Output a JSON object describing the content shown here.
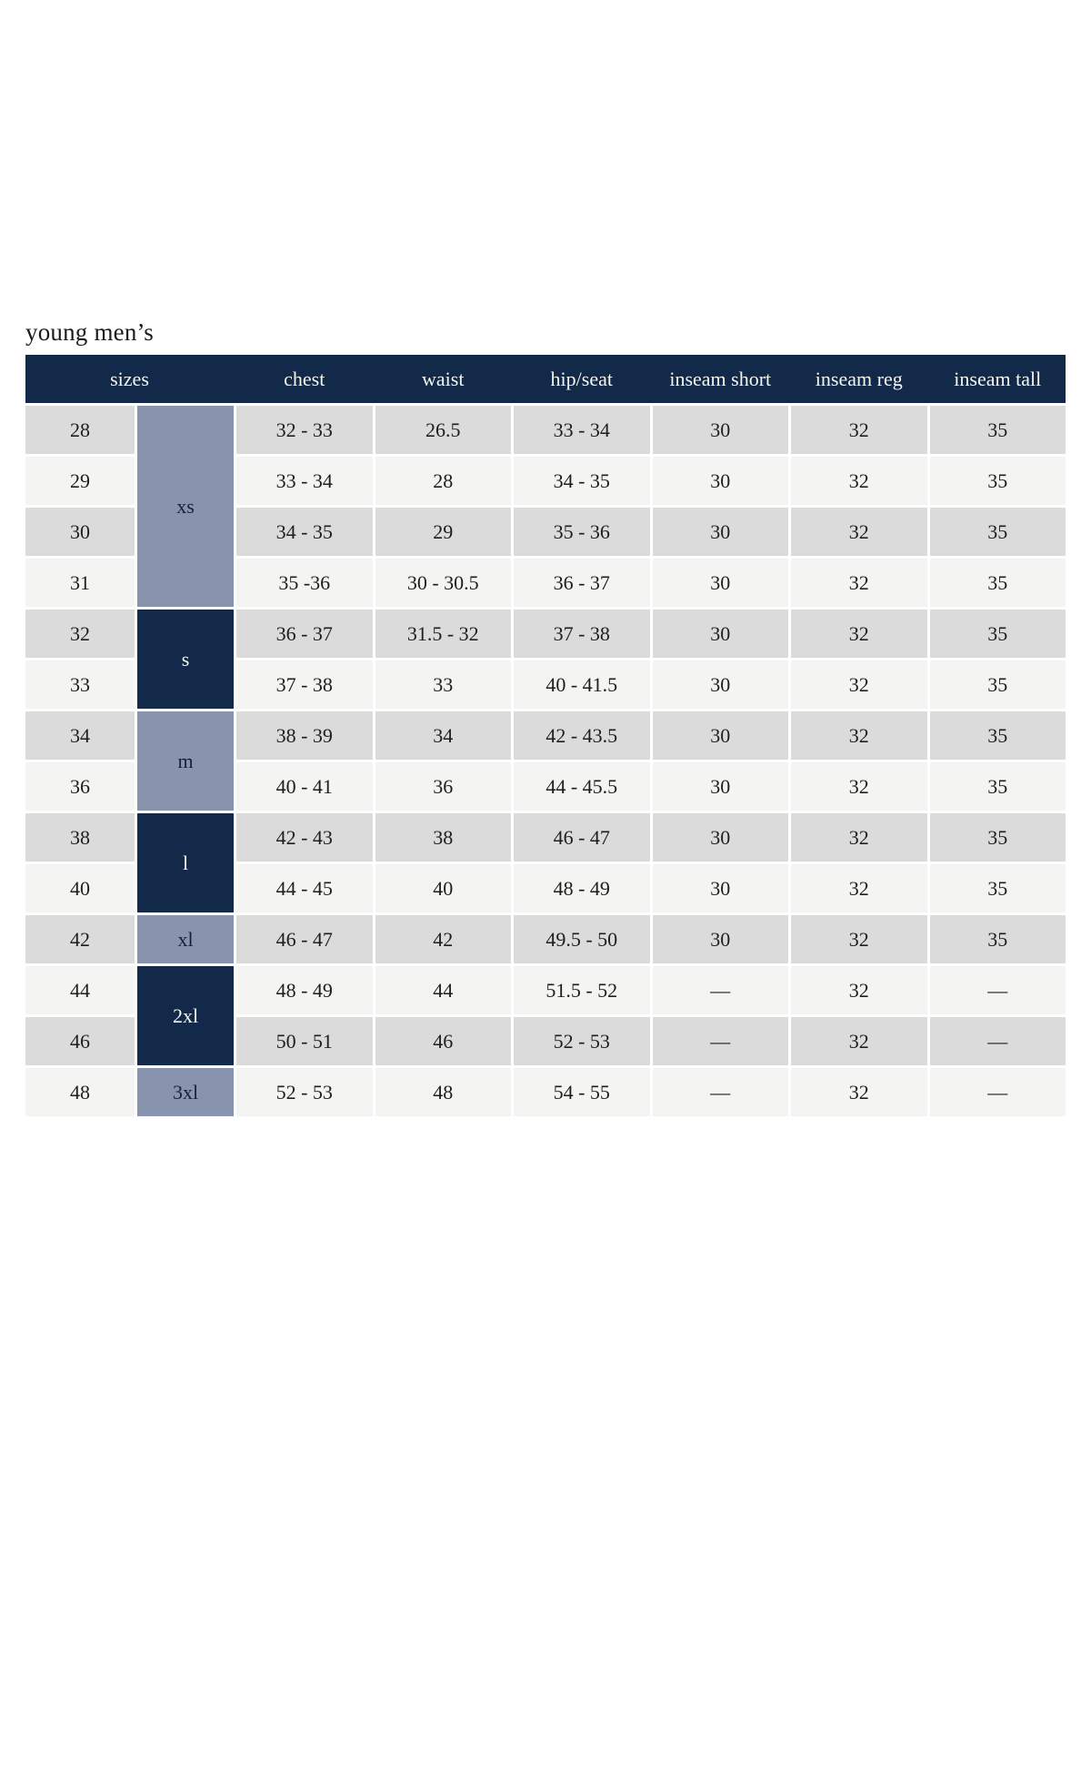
{
  "page": {
    "title": "young men’s"
  },
  "colors": {
    "header_navy": "#12294a",
    "group_slate": "#8893ae",
    "row_gray": "#dbdbdb",
    "row_light": "#f4f4f3",
    "header_text": "#f6f6f1",
    "body_text": "#1e1e1e"
  },
  "table": {
    "headers": {
      "sizes": "sizes",
      "chest": "chest",
      "waist": "waist",
      "hip_seat": "hip/seat",
      "inseam_short": "inseam short",
      "inseam_reg": "inseam reg",
      "inseam_tall": "inseam tall"
    },
    "size_groups": [
      {
        "label": "xs",
        "span": 4,
        "style": "slate"
      },
      {
        "label": "s",
        "span": 2,
        "style": "navy"
      },
      {
        "label": "m",
        "span": 2,
        "style": "slate"
      },
      {
        "label": "l",
        "span": 2,
        "style": "navy"
      },
      {
        "label": "xl",
        "span": 1,
        "style": "slate"
      },
      {
        "label": "2xl",
        "span": 2,
        "style": "navy"
      },
      {
        "label": "3xl",
        "span": 1,
        "style": "slate"
      }
    ],
    "rows": [
      {
        "size": "28",
        "chest": "32 - 33",
        "waist": "26.5",
        "hip_seat": "33 - 34",
        "inseam_short": "30",
        "inseam_reg": "32",
        "inseam_tall": "35"
      },
      {
        "size": "29",
        "chest": "33 - 34",
        "waist": "28",
        "hip_seat": "34 - 35",
        "inseam_short": "30",
        "inseam_reg": "32",
        "inseam_tall": "35"
      },
      {
        "size": "30",
        "chest": "34 - 35",
        "waist": "29",
        "hip_seat": "35 - 36",
        "inseam_short": "30",
        "inseam_reg": "32",
        "inseam_tall": "35"
      },
      {
        "size": "31",
        "chest": "35 -36",
        "waist": "30 - 30.5",
        "hip_seat": "36 - 37",
        "inseam_short": "30",
        "inseam_reg": "32",
        "inseam_tall": "35"
      },
      {
        "size": "32",
        "chest": "36 - 37",
        "waist": "31.5 - 32",
        "hip_seat": "37 - 38",
        "inseam_short": "30",
        "inseam_reg": "32",
        "inseam_tall": "35"
      },
      {
        "size": "33",
        "chest": "37 - 38",
        "waist": "33",
        "hip_seat": "40 - 41.5",
        "inseam_short": "30",
        "inseam_reg": "32",
        "inseam_tall": "35"
      },
      {
        "size": "34",
        "chest": "38 - 39",
        "waist": "34",
        "hip_seat": "42 - 43.5",
        "inseam_short": "30",
        "inseam_reg": "32",
        "inseam_tall": "35"
      },
      {
        "size": "36",
        "chest": "40 - 41",
        "waist": "36",
        "hip_seat": "44 - 45.5",
        "inseam_short": "30",
        "inseam_reg": "32",
        "inseam_tall": "35"
      },
      {
        "size": "38",
        "chest": "42 - 43",
        "waist": "38",
        "hip_seat": "46 - 47",
        "inseam_short": "30",
        "inseam_reg": "32",
        "inseam_tall": "35"
      },
      {
        "size": "40",
        "chest": "44 - 45",
        "waist": "40",
        "hip_seat": "48 - 49",
        "inseam_short": "30",
        "inseam_reg": "32",
        "inseam_tall": "35"
      },
      {
        "size": "42",
        "chest": "46 - 47",
        "waist": "42",
        "hip_seat": "49.5 - 50",
        "inseam_short": "30",
        "inseam_reg": "32",
        "inseam_tall": "35"
      },
      {
        "size": "44",
        "chest": "48 - 49",
        "waist": "44",
        "hip_seat": "51.5 - 52",
        "inseam_short": "—",
        "inseam_reg": "32",
        "inseam_tall": "—"
      },
      {
        "size": "46",
        "chest": "50 - 51",
        "waist": "46",
        "hip_seat": "52 - 53",
        "inseam_short": "—",
        "inseam_reg": "32",
        "inseam_tall": "—"
      },
      {
        "size": "48",
        "chest": "52 - 53",
        "waist": "48",
        "hip_seat": "54 - 55",
        "inseam_short": "—",
        "inseam_reg": "32",
        "inseam_tall": "—"
      }
    ]
  }
}
